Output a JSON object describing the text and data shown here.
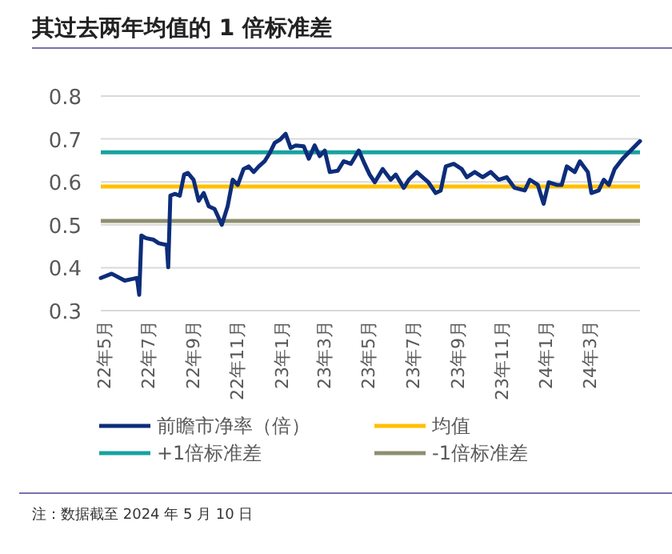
{
  "chart_data": {
    "type": "line",
    "title": "其过去两年均值的 1 倍标准差",
    "x": [
      "2022-04-27",
      "2022-05-12",
      "2022-05-30",
      "2022-06-10",
      "2022-06-16",
      "2022-06-19",
      "2022-06-22",
      "2022-06-28",
      "2022-07-09",
      "2022-07-16",
      "2022-07-27",
      "2022-07-29",
      "2022-08-01",
      "2022-08-07",
      "2022-08-14",
      "2022-08-20",
      "2022-08-25",
      "2022-09-02",
      "2022-09-09",
      "2022-09-16",
      "2022-09-23",
      "2022-10-01",
      "2022-10-11",
      "2022-10-19",
      "2022-10-26",
      "2022-11-02",
      "2022-11-10",
      "2022-11-17",
      "2022-11-24",
      "2022-12-01",
      "2022-12-09",
      "2022-12-16",
      "2022-12-23",
      "2022-12-30",
      "2023-01-07",
      "2023-01-14",
      "2023-01-21",
      "2023-02-01",
      "2023-02-08",
      "2023-02-16",
      "2023-02-23",
      "2023-03-02",
      "2023-03-09",
      "2023-03-20",
      "2023-03-28",
      "2023-04-07",
      "2023-04-18",
      "2023-04-26",
      "2023-05-03",
      "2023-05-10",
      "2023-05-21",
      "2023-06-01",
      "2023-06-08",
      "2023-06-19",
      "2023-06-26",
      "2023-07-07",
      "2023-07-15",
      "2023-07-23",
      "2023-08-02",
      "2023-08-09",
      "2023-08-16",
      "2023-08-27",
      "2023-09-07",
      "2023-09-14",
      "2023-09-25",
      "2023-10-06",
      "2023-10-17",
      "2023-10-28",
      "2023-11-08",
      "2023-11-19",
      "2023-12-03",
      "2023-12-10",
      "2023-12-21",
      "2023-12-29",
      "2024-01-05",
      "2024-01-16",
      "2024-01-23",
      "2024-01-30",
      "2024-02-10",
      "2024-02-17",
      "2024-02-28",
      "2024-03-04",
      "2024-03-14",
      "2024-03-21",
      "2024-03-28",
      "2024-04-05",
      "2024-04-16",
      "2024-05-10"
    ],
    "series": [
      {
        "name": "前瞻市净率（倍）",
        "color": "#0d2d7a",
        "values": [
          0.376,
          0.386,
          0.37,
          0.374,
          0.376,
          0.337,
          0.475,
          0.469,
          0.465,
          0.457,
          0.453,
          0.401,
          0.568,
          0.572,
          0.568,
          0.617,
          0.621,
          0.605,
          0.556,
          0.574,
          0.543,
          0.537,
          0.5,
          0.543,
          0.605,
          0.593,
          0.63,
          0.636,
          0.623,
          0.636,
          0.648,
          0.667,
          0.691,
          0.698,
          0.712,
          0.679,
          0.685,
          0.683,
          0.654,
          0.685,
          0.66,
          0.673,
          0.623,
          0.626,
          0.648,
          0.642,
          0.673,
          0.642,
          0.617,
          0.599,
          0.63,
          0.605,
          0.617,
          0.586,
          0.605,
          0.623,
          0.611,
          0.599,
          0.574,
          0.58,
          0.636,
          0.642,
          0.63,
          0.611,
          0.623,
          0.611,
          0.623,
          0.605,
          0.611,
          0.586,
          0.58,
          0.605,
          0.593,
          0.549,
          0.599,
          0.593,
          0.593,
          0.636,
          0.623,
          0.648,
          0.623,
          0.574,
          0.58,
          0.605,
          0.593,
          0.63,
          0.654,
          0.695
        ]
      }
    ],
    "ref_lines": [
      {
        "axis": "y",
        "value": 0.589,
        "label": "均值",
        "color": "#ffc000"
      },
      {
        "axis": "y",
        "value": 0.669,
        "label": "+1倍标准差",
        "color": "#17a2a0"
      },
      {
        "axis": "y",
        "value": 0.509,
        "label": "-1倍标准差",
        "color": "#8f8f6f"
      }
    ],
    "xlim": [
      "2022-04-27",
      "2024-05-10"
    ],
    "xticks": [
      {
        "value": "2022-05-01",
        "label": "22年5月"
      },
      {
        "value": "2022-07-01",
        "label": "22年7月"
      },
      {
        "value": "2022-09-01",
        "label": "22年9月"
      },
      {
        "value": "2022-11-01",
        "label": "22年11月"
      },
      {
        "value": "2023-01-01",
        "label": "23年1月"
      },
      {
        "value": "2023-03-01",
        "label": "23年3月"
      },
      {
        "value": "2023-05-01",
        "label": "23年5月"
      },
      {
        "value": "2023-07-01",
        "label": "23年7月"
      },
      {
        "value": "2023-09-01",
        "label": "23年9月"
      },
      {
        "value": "2023-11-01",
        "label": "23年11月"
      },
      {
        "value": "2024-01-01",
        "label": "24年1月"
      },
      {
        "value": "2024-03-01",
        "label": "24年3月"
      }
    ],
    "ylim": [
      0.3,
      0.8
    ],
    "yticks": [
      0.3,
      0.4,
      0.5,
      0.6,
      0.7,
      0.8
    ],
    "grid": "y",
    "legend": "bottom",
    "annotations": [
      "注：数据截至 2024 年 5 月 10 日"
    ]
  }
}
